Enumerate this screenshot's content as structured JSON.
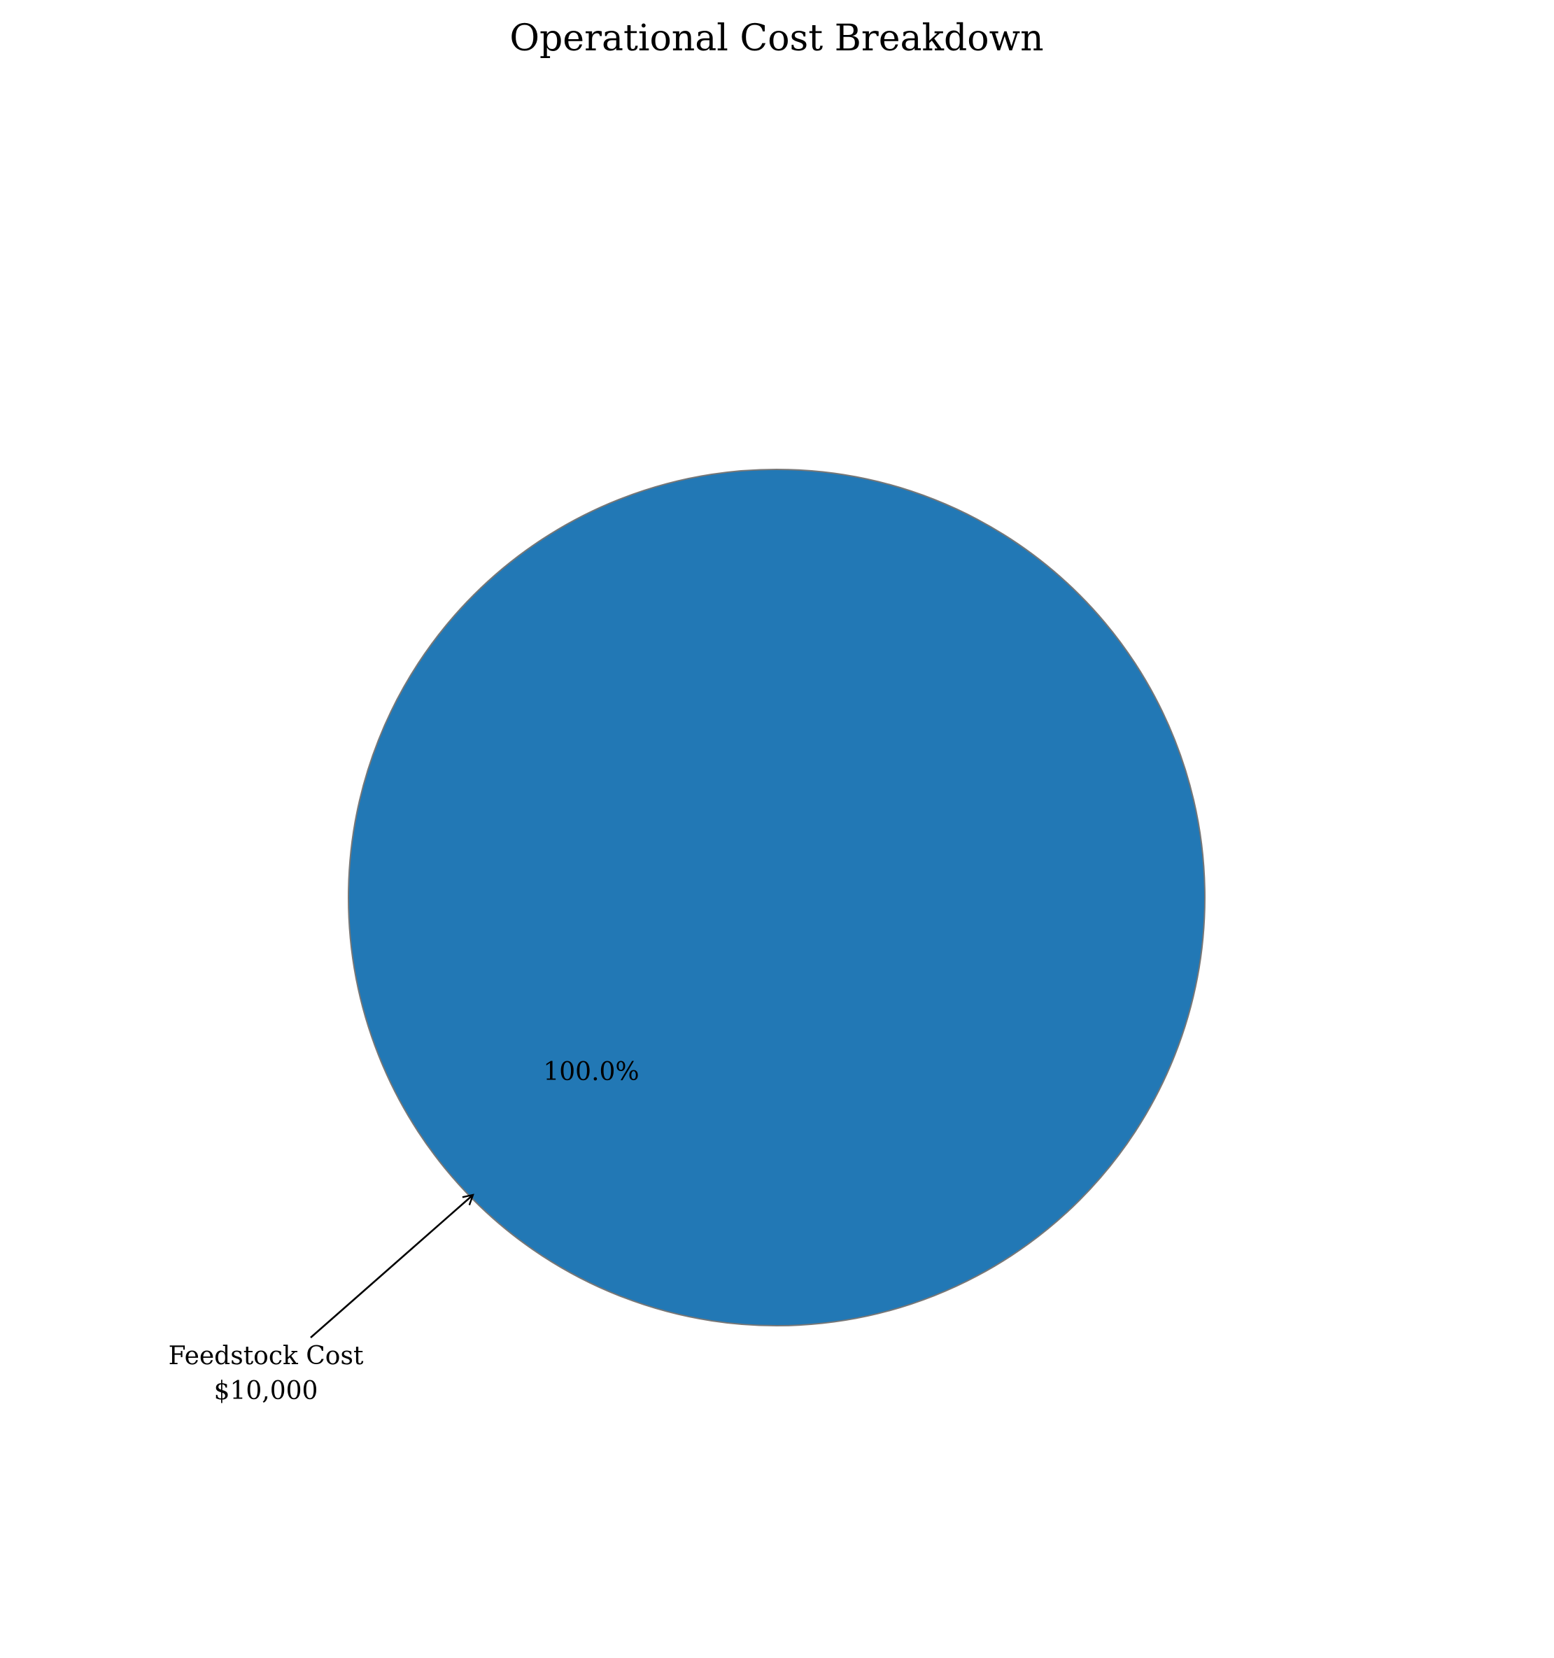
{
  "chart_data": {
    "type": "pie",
    "title": "Operational Cost Breakdown",
    "slices": [
      {
        "label": "Feedstock Cost",
        "value": 10000,
        "value_label": "$10,000",
        "percent_label": "100.0%",
        "color": "#2278b5"
      }
    ],
    "edge_color": "#777777",
    "annotation_arrow_color": "#000000"
  }
}
